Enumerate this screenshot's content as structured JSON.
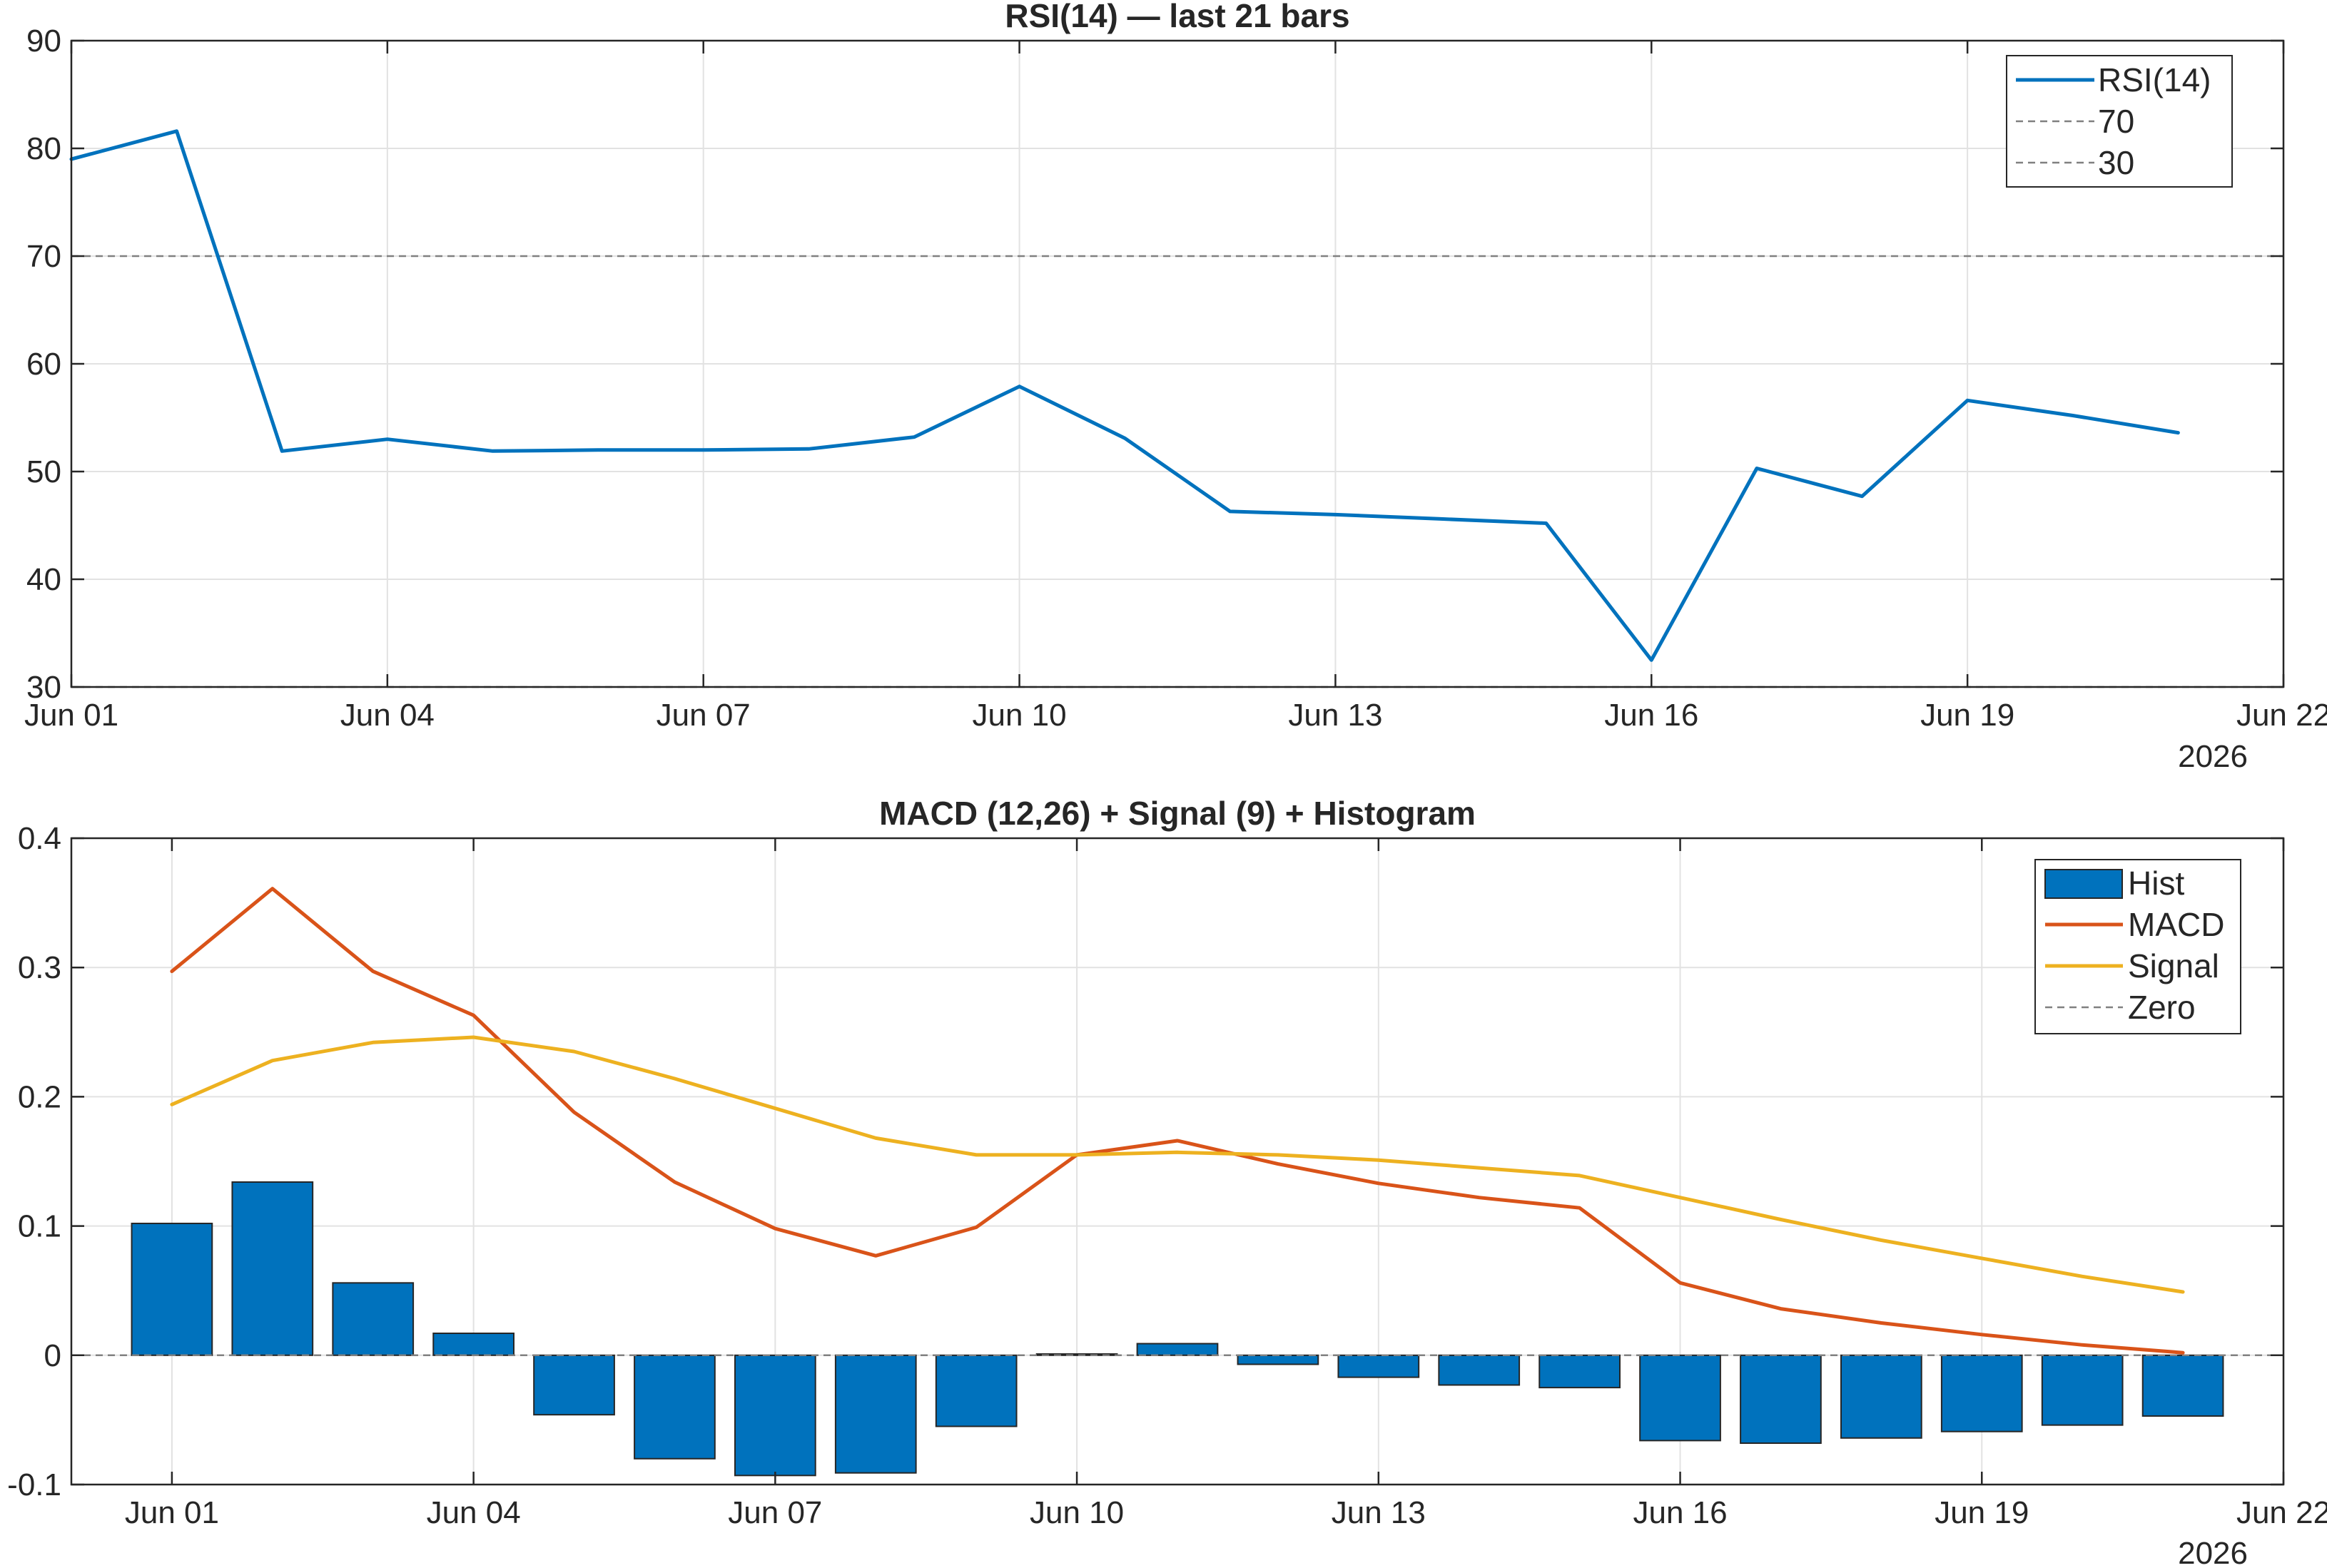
{
  "chart_data": [
    {
      "type": "line",
      "title": "RSI(14) — last 21 bars",
      "x": [
        1,
        2,
        3,
        4,
        5,
        6,
        7,
        8,
        9,
        10,
        11,
        12,
        13,
        14,
        15,
        16,
        17,
        18,
        19,
        20,
        21
      ],
      "series": [
        {
          "name": "RSI(14)",
          "color": "#0072BD",
          "style": "solid",
          "values": [
            79.0,
            81.6,
            51.9,
            53.0,
            51.9,
            52.0,
            52.0,
            52.1,
            53.2,
            57.9,
            53.1,
            46.3,
            46.0,
            45.6,
            45.2,
            32.5,
            50.3,
            47.7,
            56.6,
            55.2,
            53.6
          ]
        },
        {
          "name": "70",
          "color": "#808080",
          "style": "dashed",
          "constant": 70
        },
        {
          "name": "30",
          "color": "#808080",
          "style": "dashed",
          "constant": 30
        }
      ],
      "xlim": [
        1,
        22
      ],
      "ylim": [
        30,
        90
      ],
      "xticks": [
        1,
        4,
        7,
        10,
        13,
        16,
        19,
        22
      ],
      "xtick_labels": [
        "Jun 01",
        "Jun 04",
        "Jun 07",
        "Jun 10",
        "Jun 13",
        "Jun 16",
        "Jun 19",
        "Jun 22"
      ],
      "yticks": [
        30,
        40,
        50,
        60,
        70,
        80,
        90
      ],
      "year_label": "2026",
      "grid": true,
      "legend_position": "top-right"
    },
    {
      "type": "bar",
      "title": "MACD (12,26) + Signal (9) + Histogram",
      "x": [
        1,
        2,
        3,
        4,
        5,
        6,
        7,
        8,
        9,
        10,
        11,
        12,
        13,
        14,
        15,
        16,
        17,
        18,
        19,
        20,
        21
      ],
      "series": [
        {
          "name": "Hist",
          "kind": "bar",
          "color": "#0072BD",
          "values": [
            0.102,
            0.134,
            0.056,
            0.017,
            -0.046,
            -0.08,
            -0.093,
            -0.091,
            -0.055,
            0.001,
            0.009,
            -0.007,
            -0.017,
            -0.023,
            -0.025,
            -0.066,
            -0.068,
            -0.064,
            -0.059,
            -0.054,
            -0.047
          ]
        },
        {
          "name": "MACD",
          "kind": "line",
          "color": "#D95319",
          "values": [
            0.297,
            0.361,
            0.297,
            0.263,
            0.188,
            0.134,
            0.098,
            0.077,
            0.099,
            0.155,
            0.166,
            0.148,
            0.133,
            0.122,
            0.114,
            0.056,
            0.036,
            0.025,
            0.016,
            0.008,
            0.002
          ]
        },
        {
          "name": "Signal",
          "kind": "line",
          "color": "#EDB120",
          "values": [
            0.194,
            0.228,
            0.242,
            0.246,
            0.235,
            0.214,
            0.191,
            0.168,
            0.155,
            0.155,
            0.157,
            0.155,
            0.151,
            0.145,
            0.139,
            0.122,
            0.105,
            0.089,
            0.075,
            0.061,
            0.049
          ]
        },
        {
          "name": "Zero",
          "kind": "line",
          "color": "#808080",
          "style": "dashed",
          "constant": 0
        }
      ],
      "xlim": [
        0,
        22
      ],
      "ylim": [
        -0.1,
        0.4
      ],
      "xticks": [
        1,
        4,
        7,
        10,
        13,
        16,
        19,
        22
      ],
      "xtick_labels": [
        "Jun 01",
        "Jun 04",
        "Jun 07",
        "Jun 10",
        "Jun 13",
        "Jun 16",
        "Jun 19",
        "Jun 22"
      ],
      "yticks": [
        -0.1,
        0,
        0.1,
        0.2,
        0.3,
        0.4
      ],
      "ytick_labels": [
        "-0.1",
        "0",
        "0.1",
        "0.2",
        "0.3",
        "0.4"
      ],
      "year_label": "2026",
      "grid": true,
      "legend_position": "top-right"
    }
  ]
}
